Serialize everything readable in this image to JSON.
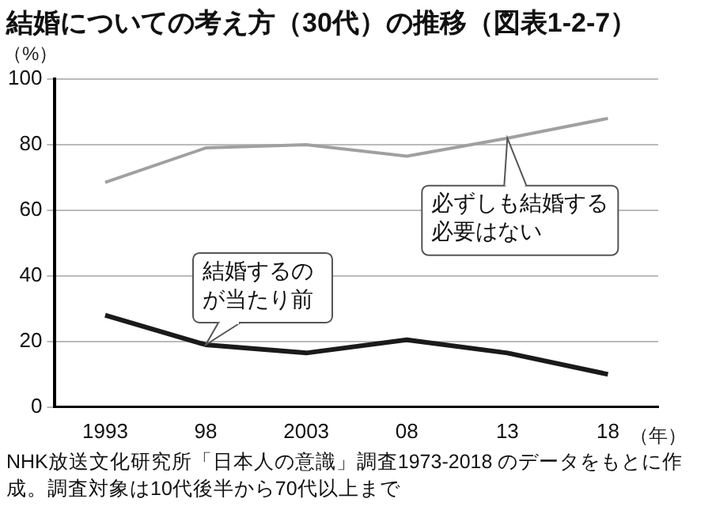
{
  "chart_data": {
    "type": "line",
    "title": "結婚についての考え方（30代）の推移（図表1-2-7）",
    "ylabel": "（%）",
    "xlabel": "（年）",
    "categories": [
      "1993",
      "98",
      "2003",
      "08",
      "13",
      "18"
    ],
    "series": [
      {
        "color": "#a0a0a0",
        "values": [
          68.5,
          79,
          80,
          76.5,
          82,
          88
        ]
      },
      {
        "color": "#1a1a1a",
        "values": [
          28,
          19,
          16.5,
          20.5,
          16.5,
          10
        ]
      }
    ],
    "ylim": [
      0,
      100
    ],
    "yticks": [
      0,
      20,
      40,
      60,
      80,
      100
    ],
    "grid": "y",
    "legend": false,
    "marker": "none",
    "line_style": "solid",
    "annotations": [
      {
        "text": "必ずしも結婚する必要はない",
        "x": "13",
        "y": 82
      },
      {
        "text": "結婚するのが当たり前",
        "x": "98",
        "y": 19
      },
      "NHK放送文化研究所「日本人の意識」調査1973-2018 のデータをもとに作成。調査対象は10代後半から70代以上まで"
    ]
  }
}
